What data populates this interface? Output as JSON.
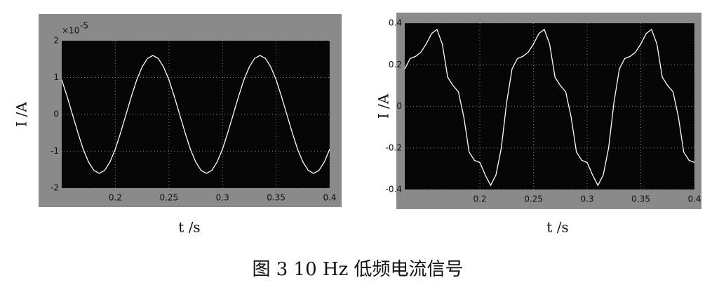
{
  "chart_data": [
    {
      "type": "line",
      "xlabel": "t /s",
      "ylabel": "I /A",
      "y_multiplier": "×10",
      "y_multiplier_exponent": "-5",
      "xlim": [
        0.15,
        0.4
      ],
      "xticks": [
        0.2,
        0.25,
        0.3,
        0.35,
        0.4
      ],
      "ylim": [
        -2,
        2
      ],
      "yticks": [
        -2,
        -1,
        0,
        1,
        2
      ],
      "grid": true,
      "series": [
        {
          "color": "#ffffff",
          "x": [
            0.15,
            0.155,
            0.16,
            0.165,
            0.17,
            0.175,
            0.18,
            0.185,
            0.19,
            0.195,
            0.2,
            0.205,
            0.21,
            0.215,
            0.22,
            0.225,
            0.23,
            0.235,
            0.24,
            0.245,
            0.25,
            0.255,
            0.26,
            0.265,
            0.27,
            0.275,
            0.28,
            0.285,
            0.29,
            0.295,
            0.3,
            0.305,
            0.31,
            0.315,
            0.32,
            0.325,
            0.33,
            0.335,
            0.34,
            0.345,
            0.35,
            0.355,
            0.36,
            0.365,
            0.37,
            0.375,
            0.38,
            0.385,
            0.39,
            0.395,
            0.4
          ],
          "values": [
            0.94,
            0.49,
            0,
            -0.49,
            -0.94,
            -1.29,
            -1.52,
            -1.6,
            -1.52,
            -1.29,
            -0.94,
            -0.49,
            0,
            0.49,
            0.94,
            1.29,
            1.52,
            1.6,
            1.52,
            1.29,
            0.94,
            0.49,
            0,
            -0.49,
            -0.94,
            -1.29,
            -1.52,
            -1.6,
            -1.52,
            -1.29,
            -0.94,
            -0.49,
            0,
            0.49,
            0.94,
            1.29,
            1.52,
            1.6,
            1.52,
            1.29,
            0.94,
            0.49,
            0,
            -0.49,
            -0.94,
            -1.29,
            -1.52,
            -1.6,
            -1.52,
            -1.29,
            -0.94
          ]
        }
      ]
    },
    {
      "type": "line",
      "xlabel": "t /s",
      "ylabel": "I /A",
      "xlim": [
        0.13,
        0.4
      ],
      "xticks": [
        0.2,
        0.25,
        0.3,
        0.35,
        0.4
      ],
      "ylim": [
        -0.4,
        0.4
      ],
      "yticks": [
        -0.4,
        -0.2,
        0,
        0.2,
        0.4
      ],
      "grid": true,
      "series": [
        {
          "color": "#ffffff",
          "x": [
            0.13,
            0.135,
            0.14,
            0.145,
            0.15,
            0.155,
            0.16,
            0.165,
            0.17,
            0.175,
            0.18,
            0.185,
            0.19,
            0.195,
            0.2,
            0.205,
            0.21,
            0.215,
            0.22,
            0.225,
            0.23,
            0.235,
            0.24,
            0.245,
            0.25,
            0.255,
            0.26,
            0.265,
            0.27,
            0.275,
            0.28,
            0.285,
            0.29,
            0.295,
            0.3,
            0.305,
            0.31,
            0.315,
            0.32,
            0.325,
            0.33,
            0.335,
            0.34,
            0.345,
            0.35,
            0.355,
            0.36,
            0.365,
            0.37,
            0.375,
            0.38,
            0.385,
            0.39,
            0.395,
            0.4
          ],
          "values": [
            0.18,
            0.23,
            0.24,
            0.26,
            0.3,
            0.35,
            0.37,
            0.3,
            0.14,
            0.1,
            0.07,
            -0.05,
            -0.22,
            -0.26,
            -0.27,
            -0.33,
            -0.38,
            -0.33,
            -0.2,
            0.02,
            0.18,
            0.23,
            0.24,
            0.26,
            0.3,
            0.35,
            0.37,
            0.3,
            0.14,
            0.1,
            0.07,
            -0.05,
            -0.22,
            -0.26,
            -0.27,
            -0.33,
            -0.38,
            -0.33,
            -0.2,
            0.02,
            0.18,
            0.23,
            0.24,
            0.26,
            0.3,
            0.35,
            0.37,
            0.3,
            0.14,
            0.1,
            0.07,
            -0.05,
            -0.22,
            -0.26,
            -0.27
          ]
        }
      ]
    }
  ],
  "caption": "图 3   10 Hz 低频电流信号"
}
